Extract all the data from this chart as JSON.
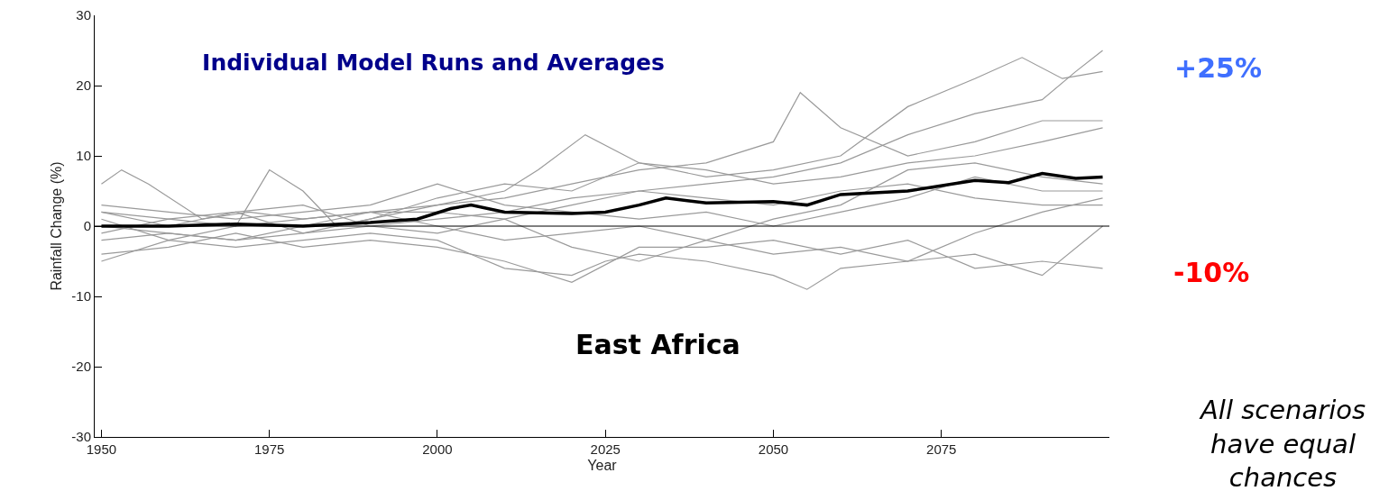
{
  "chart_data": {
    "type": "line",
    "title": "Individual Model Runs and Averages",
    "xlabel": "Year",
    "ylabel": "Rainfall Change (%)",
    "xlim": [
      1949,
      2100
    ],
    "xticks": [
      1950,
      1975,
      2000,
      2025,
      2050,
      2075
    ],
    "ylim": [
      -30,
      30
    ],
    "yticks": [
      -30,
      -20,
      -10,
      0,
      10,
      20,
      30
    ],
    "grid": false,
    "ref_lines": [
      {
        "axis": "y",
        "value": 0,
        "color": "#000000"
      }
    ],
    "annotations": [
      "East Africa",
      "+25%",
      "-10%",
      "All scenarios have equal chances"
    ],
    "series": [
      {
        "color": "#9a9a9a",
        "x": [
          1950,
          1953,
          1957,
          1965,
          1972,
          1980,
          1990,
          2000,
          2010,
          2020,
          2030,
          2040,
          2050,
          2054,
          2060,
          2070,
          2080,
          2090,
          2099
        ],
        "values": [
          6,
          8,
          6,
          1,
          2,
          1,
          2,
          3,
          4,
          6,
          8,
          9,
          12,
          19,
          14,
          10,
          12,
          15,
          15
        ]
      },
      {
        "color": "#9a9a9a",
        "x": [
          1950,
          1960,
          1970,
          1975,
          1980,
          1985,
          1990,
          2000,
          2010,
          2015,
          2022,
          2030,
          2040,
          2050,
          2060,
          2070,
          2080,
          2087,
          2093,
          2099
        ],
        "values": [
          2,
          1,
          0,
          8,
          5,
          0,
          1,
          3,
          5,
          8,
          13,
          9,
          7,
          8,
          10,
          17,
          21,
          24,
          21,
          22
        ]
      },
      {
        "color": "#9a9a9a",
        "x": [
          1950,
          1960,
          1970,
          1980,
          1990,
          2000,
          2010,
          2020,
          2030,
          2040,
          2050,
          2060,
          2070,
          2080,
          2090,
          2095,
          2099
        ],
        "values": [
          -2,
          -1,
          -2,
          -1,
          0,
          1,
          2,
          4,
          5,
          6,
          7,
          9,
          13,
          16,
          18,
          22,
          25
        ]
      },
      {
        "color": "#9a9a9a",
        "x": [
          1950,
          1960,
          1970,
          1980,
          1990,
          2000,
          2005,
          2010,
          2020,
          2025,
          2030,
          2040,
          2050,
          2055,
          2060,
          2070,
          2080,
          2090,
          2099
        ],
        "values": [
          -5,
          -2,
          -3,
          -2,
          -1,
          -2,
          -4,
          -6,
          -7,
          -5,
          -4,
          -5,
          -7,
          -9,
          -6,
          -5,
          -4,
          -7,
          0
        ]
      },
      {
        "color": "#9a9a9a",
        "x": [
          1950,
          1960,
          1970,
          1980,
          1990,
          2000,
          2010,
          2020,
          2030,
          2040,
          2050,
          2060,
          2070,
          2080,
          2090,
          2099
        ],
        "values": [
          -4,
          -3,
          -1,
          -3,
          -2,
          -3,
          -5,
          -8,
          -3,
          -3,
          -2,
          -4,
          -2,
          -6,
          -5,
          -6
        ]
      },
      {
        "color": "#9a9a9a",
        "x": [
          1950,
          1960,
          1970,
          1980,
          1990,
          2000,
          2010,
          2020,
          2030,
          2040,
          2050,
          2060,
          2070,
          2080,
          2090,
          2099
        ],
        "values": [
          3,
          2,
          1,
          2,
          3,
          6,
          3,
          2,
          1,
          2,
          0,
          2,
          4,
          7,
          5,
          5
        ]
      },
      {
        "color": "#9a9a9a",
        "x": [
          1950,
          1960,
          1970,
          1980,
          1990,
          2000,
          2010,
          2020,
          2030,
          2040,
          2050,
          2060,
          2070,
          2080,
          2090,
          2099
        ],
        "values": [
          1,
          -2,
          0,
          1,
          2,
          0,
          -2,
          -1,
          0,
          -2,
          -4,
          -3,
          -5,
          -1,
          2,
          4
        ]
      },
      {
        "color": "#9a9a9a",
        "x": [
          1950,
          1960,
          1970,
          1980,
          1990,
          2000,
          2010,
          2020,
          2030,
          2040,
          2050,
          2060,
          2070,
          2080,
          2090,
          2099
        ],
        "values": [
          -1,
          1,
          2,
          -1,
          1,
          4,
          6,
          5,
          9,
          8,
          6,
          7,
          9,
          10,
          12,
          14
        ]
      },
      {
        "color": "#9a9a9a",
        "x": [
          1950,
          1960,
          1970,
          1980,
          1990,
          2000,
          2010,
          2020,
          2030,
          2040,
          2050,
          2060,
          2070,
          2080,
          2090,
          2099
        ],
        "values": [
          0,
          -1,
          -2,
          0,
          2,
          2,
          1,
          3,
          5,
          4,
          3,
          5,
          6,
          4,
          3,
          3
        ]
      },
      {
        "color": "#9a9a9a",
        "x": [
          1950,
          1960,
          1970,
          1980,
          1990,
          2000,
          2010,
          2020,
          2030,
          2040,
          2050,
          2060,
          2070,
          2080,
          2090,
          2099
        ],
        "values": [
          2,
          0,
          2,
          3,
          0,
          -1,
          1,
          -3,
          -5,
          -2,
          1,
          3,
          8,
          9,
          7,
          6
        ]
      },
      {
        "color": "#000000",
        "x": [
          1950,
          1960,
          1970,
          1980,
          1990,
          1997,
          2002,
          2005,
          2010,
          2020,
          2025,
          2030,
          2034,
          2040,
          2050,
          2055,
          2060,
          2070,
          2080,
          2085,
          2090,
          2095,
          2099
        ],
        "values": [
          0,
          0,
          0.3,
          0,
          0.5,
          1,
          2.5,
          3,
          2,
          1.8,
          2,
          3,
          4,
          3.3,
          3.5,
          3,
          4.5,
          5,
          6.5,
          6.2,
          7.5,
          6.8,
          7
        ]
      }
    ]
  }
}
